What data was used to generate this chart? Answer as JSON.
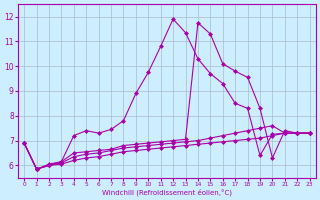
{
  "xlabel": "Windchill (Refroidissement éolien,°C)",
  "xlim": [
    -0.5,
    23.5
  ],
  "ylim": [
    5.5,
    12.5
  ],
  "xticks": [
    0,
    1,
    2,
    3,
    4,
    5,
    6,
    7,
    8,
    9,
    10,
    11,
    12,
    13,
    14,
    15,
    16,
    17,
    18,
    19,
    20,
    21,
    22,
    23
  ],
  "yticks": [
    6,
    7,
    8,
    9,
    10,
    11,
    12
  ],
  "bg_color": "#cceeff",
  "line_color": "#aa00aa",
  "grid_color": "#aabbcc",
  "line1_x": [
    0,
    1,
    2,
    3,
    4,
    5,
    6,
    7,
    8,
    9,
    10,
    11,
    12,
    13,
    14,
    15,
    16,
    17,
    18,
    19,
    20,
    21,
    22,
    23
  ],
  "line1_y": [
    6.9,
    5.85,
    6.0,
    6.15,
    7.2,
    7.4,
    7.3,
    7.45,
    7.8,
    8.9,
    9.75,
    10.8,
    11.9,
    11.35,
    10.3,
    9.7,
    9.3,
    8.5,
    8.3,
    6.4,
    7.25,
    7.3,
    7.3,
    7.3
  ],
  "line2_x": [
    0,
    1,
    2,
    3,
    4,
    5,
    6,
    7,
    8,
    9,
    10,
    11,
    12,
    13,
    14,
    15,
    16,
    17,
    18,
    19,
    20,
    21,
    22,
    23
  ],
  "line2_y": [
    6.9,
    5.85,
    6.05,
    6.15,
    6.5,
    6.55,
    6.6,
    6.65,
    6.8,
    6.85,
    6.9,
    6.95,
    7.0,
    7.05,
    11.75,
    11.3,
    10.1,
    9.8,
    9.55,
    8.3,
    6.3,
    7.4,
    7.3,
    7.3
  ],
  "line3_x": [
    0,
    1,
    2,
    3,
    4,
    5,
    6,
    7,
    8,
    9,
    10,
    11,
    12,
    13,
    14,
    15,
    16,
    17,
    18,
    19,
    20,
    21,
    22,
    23
  ],
  "line3_y": [
    6.9,
    5.85,
    6.0,
    6.1,
    6.35,
    6.45,
    6.5,
    6.6,
    6.7,
    6.75,
    6.8,
    6.85,
    6.9,
    6.95,
    7.0,
    7.1,
    7.2,
    7.3,
    7.4,
    7.5,
    7.6,
    7.3,
    7.3,
    7.3
  ],
  "line4_x": [
    0,
    1,
    2,
    3,
    4,
    5,
    6,
    7,
    8,
    9,
    10,
    11,
    12,
    13,
    14,
    15,
    16,
    17,
    18,
    19,
    20,
    21,
    22,
    23
  ],
  "line4_y": [
    6.9,
    5.85,
    6.0,
    6.05,
    6.2,
    6.3,
    6.35,
    6.45,
    6.55,
    6.6,
    6.65,
    6.7,
    6.75,
    6.8,
    6.85,
    6.9,
    6.95,
    7.0,
    7.05,
    7.1,
    7.2,
    7.3,
    7.3,
    7.3
  ]
}
